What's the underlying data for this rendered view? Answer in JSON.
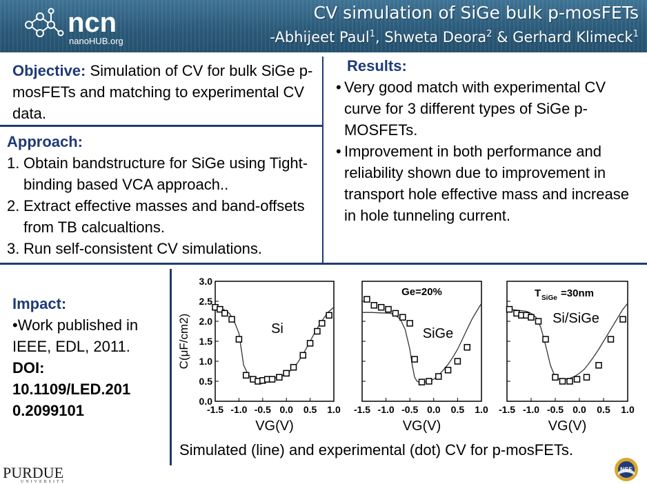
{
  "header": {
    "logo_text": "ncn",
    "logo_subtext": "nanoHUB.org",
    "title": "CV simulation of SiGe bulk p-mosFETs",
    "authors": [
      {
        "name": "-Abhijeet Paul",
        "sup": "1"
      },
      {
        "name": ", Shweta Deora",
        "sup": "2"
      },
      {
        "name": " & Gerhard Klimeck",
        "sup": "1"
      }
    ]
  },
  "objective": {
    "heading": "Objective:",
    "text": " Simulation of CV for bulk SiGe p-mosFETs and matching to experimental CV data."
  },
  "approach": {
    "heading": "Approach:",
    "items": [
      {
        "num": "1.",
        "text": "Obtain bandstructure for SiGe using Tight-binding based VCA approach.."
      },
      {
        "num": "2.",
        "text": "Extract effective masses and band-offsets from TB calcualtions."
      },
      {
        "num": "3.",
        "text": "Run self-consistent CV simulations."
      }
    ]
  },
  "results": {
    "heading": "Results:",
    "items": [
      "Very good match with experimental CV curve for 3 different types of SiGe p-MOSFETs.",
      "Improvement in both performance and reliability shown due to improvement in transport hole effective mass and increase in hole tunneling current."
    ]
  },
  "impact": {
    "heading": "Impact:",
    "bullet": "Work published in IEEE, EDL, 2011.",
    "doi_label": "DOI:",
    "doi_value": "10.1109/LED.201 0.2099101"
  },
  "caption": "Simulated (line) and experimental (dot) CV for p-mosFETs.",
  "footer": {
    "purdue": "PURDUE",
    "purdue_sub": "UNIVERSITY",
    "nsf": "NSF"
  },
  "colors": {
    "banner": "#2b5a79",
    "heading_blue": "#1f3a77"
  },
  "chart_data": [
    {
      "type": "line",
      "panel_label": "Si",
      "ylabel": "C(μF/cm2)",
      "xlabel": "VG(V)",
      "xlim": [
        -1.5,
        1.0
      ],
      "ylim": [
        0.0,
        3.0
      ],
      "xticks": [
        "-1.5",
        "-1.0",
        "-0.5",
        "0.0",
        "0.5",
        "1.0"
      ],
      "yticks": [
        "0.0",
        "0.5",
        "1.0",
        "1.5",
        "2.0",
        "2.5",
        "3.0"
      ],
      "series": [
        {
          "name": "Simulated",
          "style": "line",
          "x": [
            -1.5,
            -1.4,
            -1.3,
            -1.2,
            -1.1,
            -1.0,
            -0.95,
            -0.9,
            -0.8,
            -0.7,
            -0.6,
            -0.5,
            -0.4,
            -0.3,
            -0.2,
            -0.1,
            0.0,
            0.1,
            0.2,
            0.3,
            0.4,
            0.5,
            0.6,
            0.7,
            0.8,
            0.9,
            1.0
          ],
          "y": [
            2.35,
            2.33,
            2.28,
            2.2,
            2.0,
            1.7,
            1.3,
            0.9,
            0.65,
            0.57,
            0.55,
            0.55,
            0.56,
            0.57,
            0.6,
            0.63,
            0.68,
            0.78,
            0.9,
            1.08,
            1.28,
            1.5,
            1.72,
            1.92,
            2.1,
            2.25,
            2.35
          ]
        },
        {
          "name": "Experimental",
          "style": "dot",
          "x": [
            -1.5,
            -1.4,
            -1.3,
            -1.15,
            -1.0,
            -0.85,
            -0.7,
            -0.6,
            -0.5,
            -0.4,
            -0.3,
            -0.15,
            0.0,
            0.15,
            0.35,
            0.5,
            0.65,
            0.75,
            0.9
          ],
          "y": [
            2.35,
            2.3,
            2.2,
            2.05,
            1.55,
            0.65,
            0.55,
            0.5,
            0.52,
            0.55,
            0.55,
            0.6,
            0.7,
            0.85,
            1.15,
            1.45,
            1.75,
            1.95,
            2.15
          ]
        }
      ]
    },
    {
      "type": "line",
      "panel_label": "SiGe",
      "annotation": "Ge=20%",
      "xlabel": "VG(V)",
      "xlim": [
        -1.5,
        1.0
      ],
      "ylim": [
        0.0,
        3.0
      ],
      "xticks": [
        "-1.5",
        "-1.0",
        "-0.5",
        "0.0",
        "0.5",
        "1.0"
      ],
      "series": [
        {
          "name": "Simulated",
          "style": "line",
          "x": [
            -1.5,
            -1.3,
            -1.1,
            -0.9,
            -0.8,
            -0.7,
            -0.6,
            -0.5,
            -0.45,
            -0.4,
            -0.35,
            -0.3,
            -0.2,
            -0.1,
            0.0,
            0.1,
            0.2,
            0.3,
            0.4,
            0.5,
            0.6,
            0.7,
            0.8,
            0.9,
            1.0
          ],
          "y": [
            2.22,
            2.22,
            2.21,
            2.2,
            2.15,
            2.05,
            1.8,
            1.3,
            0.9,
            0.6,
            0.5,
            0.48,
            0.48,
            0.5,
            0.55,
            0.65,
            0.78,
            0.92,
            1.1,
            1.3,
            1.55,
            1.8,
            2.05,
            2.25,
            2.45
          ]
        },
        {
          "name": "Experimental",
          "style": "dot",
          "x": [
            -1.4,
            -1.25,
            -1.1,
            -0.95,
            -0.8,
            -0.65,
            -0.5,
            -0.4,
            -0.25,
            -0.1,
            0.1,
            0.3,
            0.5,
            0.7
          ],
          "y": [
            2.55,
            2.4,
            2.35,
            2.3,
            2.2,
            2.1,
            1.95,
            1.05,
            0.48,
            0.5,
            0.62,
            0.78,
            1.0,
            1.35
          ]
        }
      ]
    },
    {
      "type": "line",
      "panel_label": "Si/SiGe",
      "annotation_main": "T",
      "annotation_sub": "SiGe",
      "annotation_rest": " =30nm",
      "xlabel": "VG(V)",
      "xlim": [
        -1.5,
        1.0
      ],
      "ylim": [
        0.0,
        3.0
      ],
      "xticks": [
        "-1.5",
        "-1.0",
        "-0.5",
        "0.0",
        "0.5",
        "1.0"
      ],
      "series": [
        {
          "name": "Simulated",
          "style": "line",
          "x": [
            -1.5,
            -1.3,
            -1.1,
            -1.0,
            -0.9,
            -0.8,
            -0.7,
            -0.6,
            -0.5,
            -0.4,
            -0.3,
            -0.2,
            -0.1,
            0.0,
            0.1,
            0.2,
            0.3,
            0.4,
            0.5,
            0.6,
            0.7,
            0.8,
            0.9,
            1.0
          ],
          "y": [
            2.3,
            2.28,
            2.25,
            2.2,
            2.1,
            1.85,
            1.4,
            0.9,
            0.6,
            0.55,
            0.55,
            0.57,
            0.62,
            0.7,
            0.8,
            0.95,
            1.12,
            1.3,
            1.5,
            1.7,
            1.9,
            2.1,
            2.3,
            2.45
          ]
        },
        {
          "name": "Experimental",
          "style": "dot",
          "x": [
            -1.45,
            -1.3,
            -1.2,
            -1.1,
            -1.0,
            -0.85,
            -0.7,
            -0.5,
            -0.35,
            -0.2,
            -0.05,
            0.15,
            0.4,
            0.65,
            0.9
          ],
          "y": [
            2.3,
            2.2,
            2.15,
            2.15,
            2.1,
            2.0,
            1.55,
            0.6,
            0.5,
            0.5,
            0.55,
            0.6,
            0.9,
            1.55,
            2.05
          ]
        }
      ]
    }
  ]
}
